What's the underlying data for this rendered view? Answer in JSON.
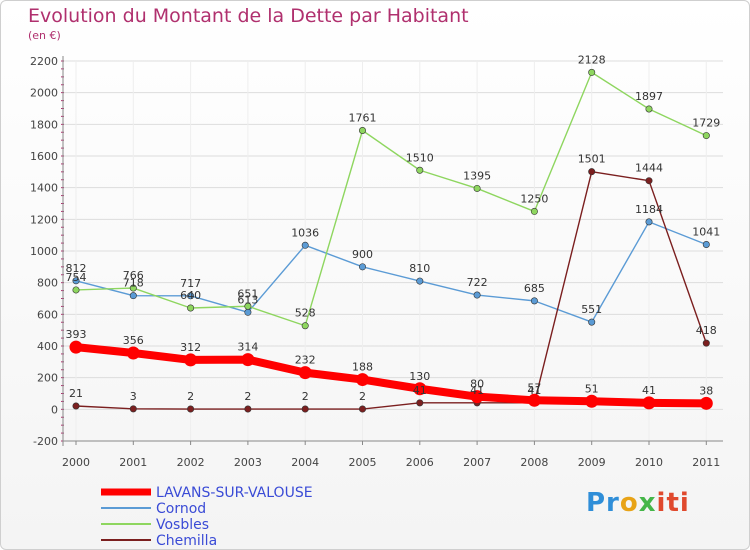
{
  "chart_data": {
    "type": "line",
    "title": "Evolution du Montant de la Dette par Habitant",
    "subtitle": "(en €)",
    "x": [
      "2000",
      "2001",
      "2002",
      "2003",
      "2004",
      "2005",
      "2006",
      "2007",
      "2008",
      "2009",
      "2010",
      "2011"
    ],
    "ylim": [
      -200,
      2200
    ],
    "yticks": [
      -200,
      0,
      200,
      400,
      600,
      800,
      1000,
      1200,
      1400,
      1600,
      1800,
      2000,
      2200
    ],
    "grid": true,
    "legend_position": "bottom-left",
    "series": [
      {
        "name": "LAVANS-SUR-VALOUSE",
        "color": "#ff0000",
        "emphasis": true,
        "values": [
          393,
          356,
          312,
          314,
          232,
          188,
          130,
          80,
          57,
          51,
          41,
          38
        ],
        "labels": [
          "393",
          "356",
          "312",
          "314",
          "232",
          "188",
          "130",
          "80",
          "57",
          "51",
          "41",
          "38"
        ]
      },
      {
        "name": "Cornod",
        "color": "#5b9bd5",
        "values": [
          812,
          718,
          717,
          613,
          1036,
          900,
          810,
          722,
          685,
          551,
          1184,
          1041
        ],
        "labels": [
          "812",
          "718",
          "717",
          "613",
          "1036",
          "900",
          "810",
          "722",
          "685",
          "551",
          "1184",
          "1041"
        ]
      },
      {
        "name": "Vosbles",
        "color": "#8ed65f",
        "values": [
          754,
          766,
          640,
          651,
          528,
          1761,
          1510,
          1395,
          1250,
          2128,
          1897,
          1729
        ],
        "labels": [
          "754",
          "766",
          "640",
          "651",
          "528",
          "1761",
          "1510",
          "1395",
          "1250",
          "2128",
          "1897",
          "1729"
        ]
      },
      {
        "name": "Chemilla",
        "color": "#7b1f1f",
        "values": [
          21,
          3,
          2,
          2,
          2,
          2,
          41,
          41,
          41,
          1501,
          1444,
          418
        ],
        "labels": [
          "21",
          "3",
          "2",
          "2",
          "2",
          "2",
          "41",
          "41",
          "41",
          "1501",
          "1444",
          "418"
        ]
      }
    ]
  },
  "logo": {
    "parts": [
      "Pr",
      "o",
      "x",
      "iti"
    ]
  }
}
